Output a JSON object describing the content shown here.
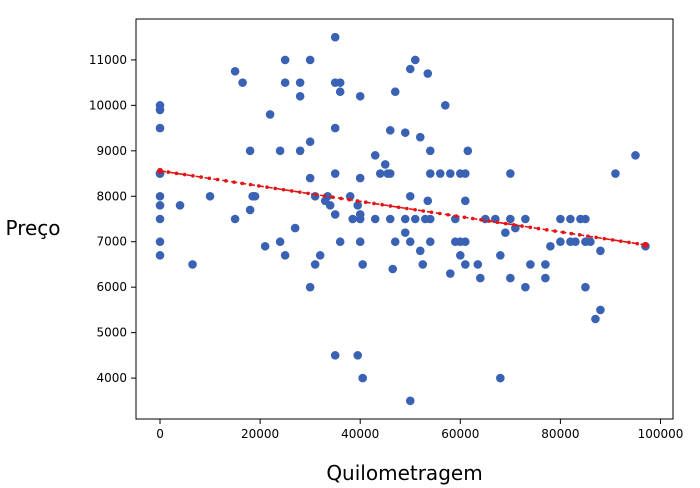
{
  "chart_data": {
    "type": "scatter",
    "xlabel": "Quilometragem",
    "ylabel": "Preço",
    "xlim": [
      -4800,
      102500
    ],
    "ylim": [
      3100,
      11900
    ],
    "x_ticks": [
      0,
      20000,
      40000,
      60000,
      80000,
      100000
    ],
    "y_ticks": [
      4000,
      5000,
      6000,
      7000,
      8000,
      9000,
      10000,
      11000
    ],
    "grid": false,
    "legend": "none",
    "colors": {
      "points": "#3a62b4",
      "trend": "#e31414",
      "axes": "#000000"
    },
    "trendline": {
      "style": "dashed-with-markers",
      "x": [
        0,
        97000
      ],
      "y": [
        8560,
        6930
      ],
      "markers": 60
    },
    "points": [
      [
        0,
        10000
      ],
      [
        0,
        9900
      ],
      [
        0,
        9500
      ],
      [
        0,
        8500
      ],
      [
        0,
        8500
      ],
      [
        0,
        8000
      ],
      [
        0,
        7800
      ],
      [
        0,
        7500
      ],
      [
        0,
        7000
      ],
      [
        0,
        6700
      ],
      [
        4000,
        7800
      ],
      [
        6500,
        6500
      ],
      [
        10000,
        8000
      ],
      [
        15000,
        10750
      ],
      [
        15000,
        7500
      ],
      [
        16500,
        10500
      ],
      [
        18000,
        9000
      ],
      [
        18000,
        7700
      ],
      [
        18500,
        8000
      ],
      [
        19000,
        8000
      ],
      [
        21000,
        6900
      ],
      [
        22000,
        9800
      ],
      [
        24000,
        9000
      ],
      [
        24000,
        7000
      ],
      [
        25000,
        11000
      ],
      [
        25000,
        10500
      ],
      [
        25000,
        6700
      ],
      [
        27000,
        7300
      ],
      [
        28000,
        10500
      ],
      [
        28000,
        10200
      ],
      [
        28000,
        9000
      ],
      [
        30000,
        11000
      ],
      [
        30000,
        9200
      ],
      [
        30000,
        8400
      ],
      [
        30000,
        6000
      ],
      [
        31000,
        8000
      ],
      [
        31000,
        6500
      ],
      [
        32000,
        6700
      ],
      [
        33000,
        7900
      ],
      [
        33500,
        8000
      ],
      [
        34000,
        7800
      ],
      [
        35000,
        11500
      ],
      [
        35000,
        10500
      ],
      [
        35000,
        9500
      ],
      [
        35000,
        8500
      ],
      [
        35000,
        7600
      ],
      [
        35000,
        4500
      ],
      [
        36000,
        10500
      ],
      [
        36000,
        10300
      ],
      [
        36000,
        7000
      ],
      [
        38000,
        8000
      ],
      [
        38500,
        7500
      ],
      [
        39500,
        7800
      ],
      [
        39500,
        4500
      ],
      [
        40000,
        10200
      ],
      [
        40000,
        8400
      ],
      [
        40000,
        7600
      ],
      [
        40000,
        7500
      ],
      [
        40000,
        7000
      ],
      [
        40500,
        6500
      ],
      [
        40500,
        4000
      ],
      [
        43000,
        8900
      ],
      [
        43000,
        7500
      ],
      [
        44000,
        8500
      ],
      [
        45000,
        8700
      ],
      [
        45500,
        8500
      ],
      [
        46000,
        9450
      ],
      [
        46000,
        8500
      ],
      [
        46000,
        7500
      ],
      [
        46500,
        6400
      ],
      [
        47000,
        10300
      ],
      [
        47000,
        7000
      ],
      [
        49000,
        9400
      ],
      [
        49000,
        7500
      ],
      [
        49000,
        7200
      ],
      [
        50000,
        10800
      ],
      [
        50000,
        8000
      ],
      [
        50000,
        7000
      ],
      [
        50000,
        3500
      ],
      [
        51000,
        11000
      ],
      [
        51000,
        7500
      ],
      [
        52000,
        9300
      ],
      [
        52000,
        6800
      ],
      [
        52500,
        6500
      ],
      [
        53000,
        7500
      ],
      [
        53500,
        10700
      ],
      [
        53500,
        7900
      ],
      [
        54000,
        9000
      ],
      [
        54000,
        8500
      ],
      [
        54000,
        7500
      ],
      [
        54000,
        7000
      ],
      [
        56000,
        8500
      ],
      [
        57000,
        10000
      ],
      [
        58000,
        8500
      ],
      [
        58000,
        6300
      ],
      [
        59000,
        7500
      ],
      [
        59000,
        7000
      ],
      [
        60000,
        8500
      ],
      [
        60000,
        7000
      ],
      [
        60000,
        6700
      ],
      [
        61000,
        8500
      ],
      [
        61000,
        7900
      ],
      [
        61000,
        7000
      ],
      [
        61000,
        6500
      ],
      [
        61500,
        9000
      ],
      [
        63500,
        6500
      ],
      [
        64000,
        6200
      ],
      [
        65000,
        7500
      ],
      [
        67000,
        7500
      ],
      [
        68000,
        6700
      ],
      [
        68000,
        4000
      ],
      [
        69000,
        7200
      ],
      [
        70000,
        8500
      ],
      [
        70000,
        7500
      ],
      [
        70000,
        6200
      ],
      [
        71000,
        7300
      ],
      [
        73000,
        7500
      ],
      [
        73000,
        6000
      ],
      [
        74000,
        6500
      ],
      [
        77000,
        6500
      ],
      [
        77000,
        6200
      ],
      [
        78000,
        6900
      ],
      [
        80000,
        7500
      ],
      [
        80000,
        7000
      ],
      [
        82000,
        7500
      ],
      [
        82000,
        7000
      ],
      [
        83000,
        7000
      ],
      [
        84000,
        7500
      ],
      [
        85000,
        7500
      ],
      [
        85000,
        7000
      ],
      [
        85000,
        6000
      ],
      [
        86000,
        7000
      ],
      [
        87000,
        5300
      ],
      [
        88000,
        6800
      ],
      [
        88000,
        5500
      ],
      [
        91000,
        8500
      ],
      [
        95000,
        8900
      ],
      [
        97000,
        6900
      ]
    ]
  }
}
